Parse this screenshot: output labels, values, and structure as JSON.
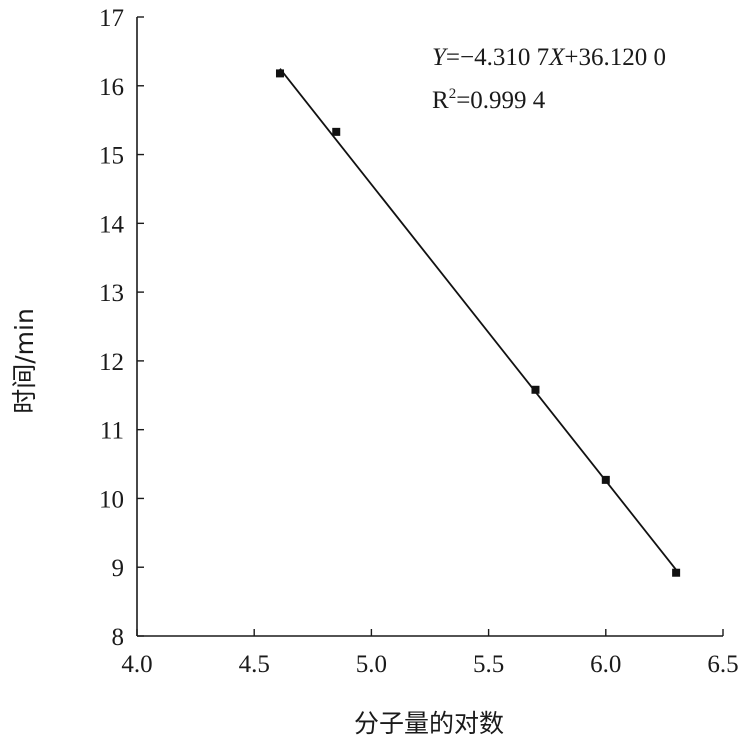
{
  "chart_data": {
    "type": "scatter",
    "title": "",
    "xlabel": "分子量的对数",
    "ylabel": "时间/min",
    "xlim": [
      4.0,
      6.5
    ],
    "ylim": [
      8,
      17
    ],
    "x_ticks": [
      4.0,
      4.5,
      5.0,
      5.5,
      6.0,
      6.5
    ],
    "x_tick_labels": [
      "4.0",
      "4.5",
      "5.0",
      "5.5",
      "6.0",
      "6.5"
    ],
    "y_ticks": [
      8,
      9,
      10,
      11,
      12,
      13,
      14,
      15,
      16,
      17
    ],
    "y_tick_labels": [
      "8",
      "9",
      "10",
      "11",
      "12",
      "13",
      "14",
      "15",
      "16",
      "17"
    ],
    "grid": false,
    "series": [
      {
        "marker": "square",
        "color": "#111111",
        "points": [
          {
            "x": 4.61,
            "y": 16.18
          },
          {
            "x": 4.85,
            "y": 15.33
          },
          {
            "x": 5.7,
            "y": 11.58
          },
          {
            "x": 6.0,
            "y": 10.27
          },
          {
            "x": 6.3,
            "y": 8.92
          }
        ]
      }
    ],
    "fit_line": {
      "slope": -4.3107,
      "intercept": 36.12,
      "x_range": [
        4.61,
        6.3
      ],
      "color": "#111111"
    },
    "annotations": {
      "equation_y": "Y",
      "equation_eq": "=−4.310 7",
      "equation_x": "X",
      "equation_rest": "+36.120 0",
      "r2_prefix": "R",
      "r2_sup": "2",
      "r2_value": "=0.999 4"
    }
  }
}
